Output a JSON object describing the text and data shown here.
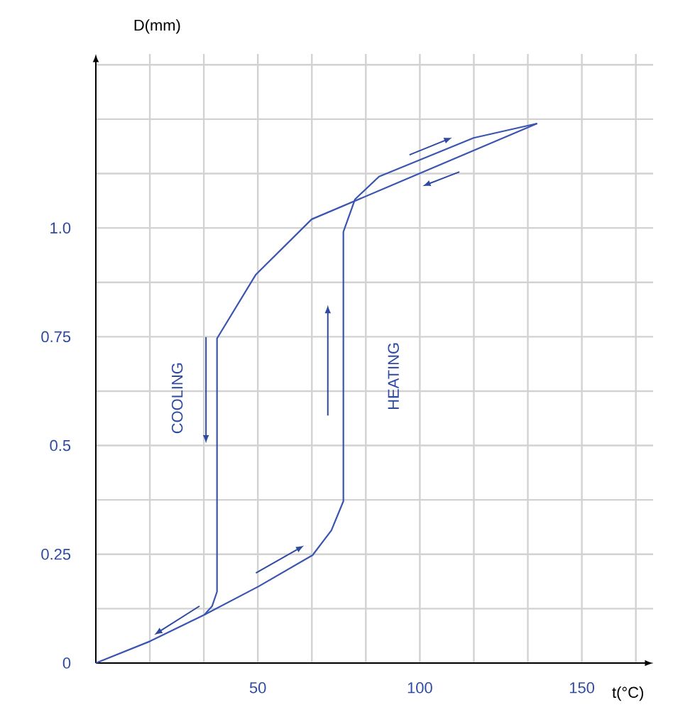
{
  "chart_data": {
    "type": "line",
    "xlabel": "t(°C)",
    "ylabel": "D(mm)",
    "xlim": [
      0,
      172
    ],
    "ylim": [
      0,
      1.4
    ],
    "xticks": [
      {
        "value": 16.67,
        "label": null
      },
      {
        "value": 33.33,
        "label": null
      },
      50,
      {
        "value": 66.67,
        "label": null
      },
      {
        "value": 83.33,
        "label": null
      },
      100,
      {
        "value": 116.67,
        "label": null
      },
      {
        "value": 133.33,
        "label": null
      },
      150,
      {
        "value": 166.67,
        "label": null
      }
    ],
    "yticks": [
      0,
      {
        "value": 0.125,
        "label": null
      },
      0.25,
      {
        "value": 0.375,
        "label": null
      },
      0.5,
      {
        "value": 0.625,
        "label": null
      },
      0.75,
      {
        "value": 0.875,
        "label": null
      },
      {
        "value": 1,
        "label": "1.0"
      },
      {
        "value": 1.125,
        "label": null
      },
      {
        "value": 1.25,
        "label": null
      },
      {
        "value": 1.375,
        "label": null
      }
    ],
    "grid": true,
    "line_style": "solid",
    "series": [
      {
        "color": "#3a55b0",
        "x": [
          0,
          16.7,
          33.5,
          50.2,
          66.9,
          72.7,
          76.4,
          76.4,
          80.0,
          87.4,
          116.6,
          136.2
        ],
        "values": [
          0,
          0.05,
          0.111,
          0.176,
          0.248,
          0.305,
          0.372,
          0.991,
          1.066,
          1.118,
          1.207,
          1.24
        ]
      },
      {
        "color": "#3a55b0",
        "x": [
          136.2,
          66.6,
          49.3,
          37.4,
          37.4,
          35.9,
          33.5
        ],
        "values": [
          1.24,
          1.02,
          0.892,
          0.746,
          0.164,
          0.131,
          0.111
        ]
      }
    ],
    "annotations": [
      "COOLING",
      "HEATING"
    ]
  }
}
